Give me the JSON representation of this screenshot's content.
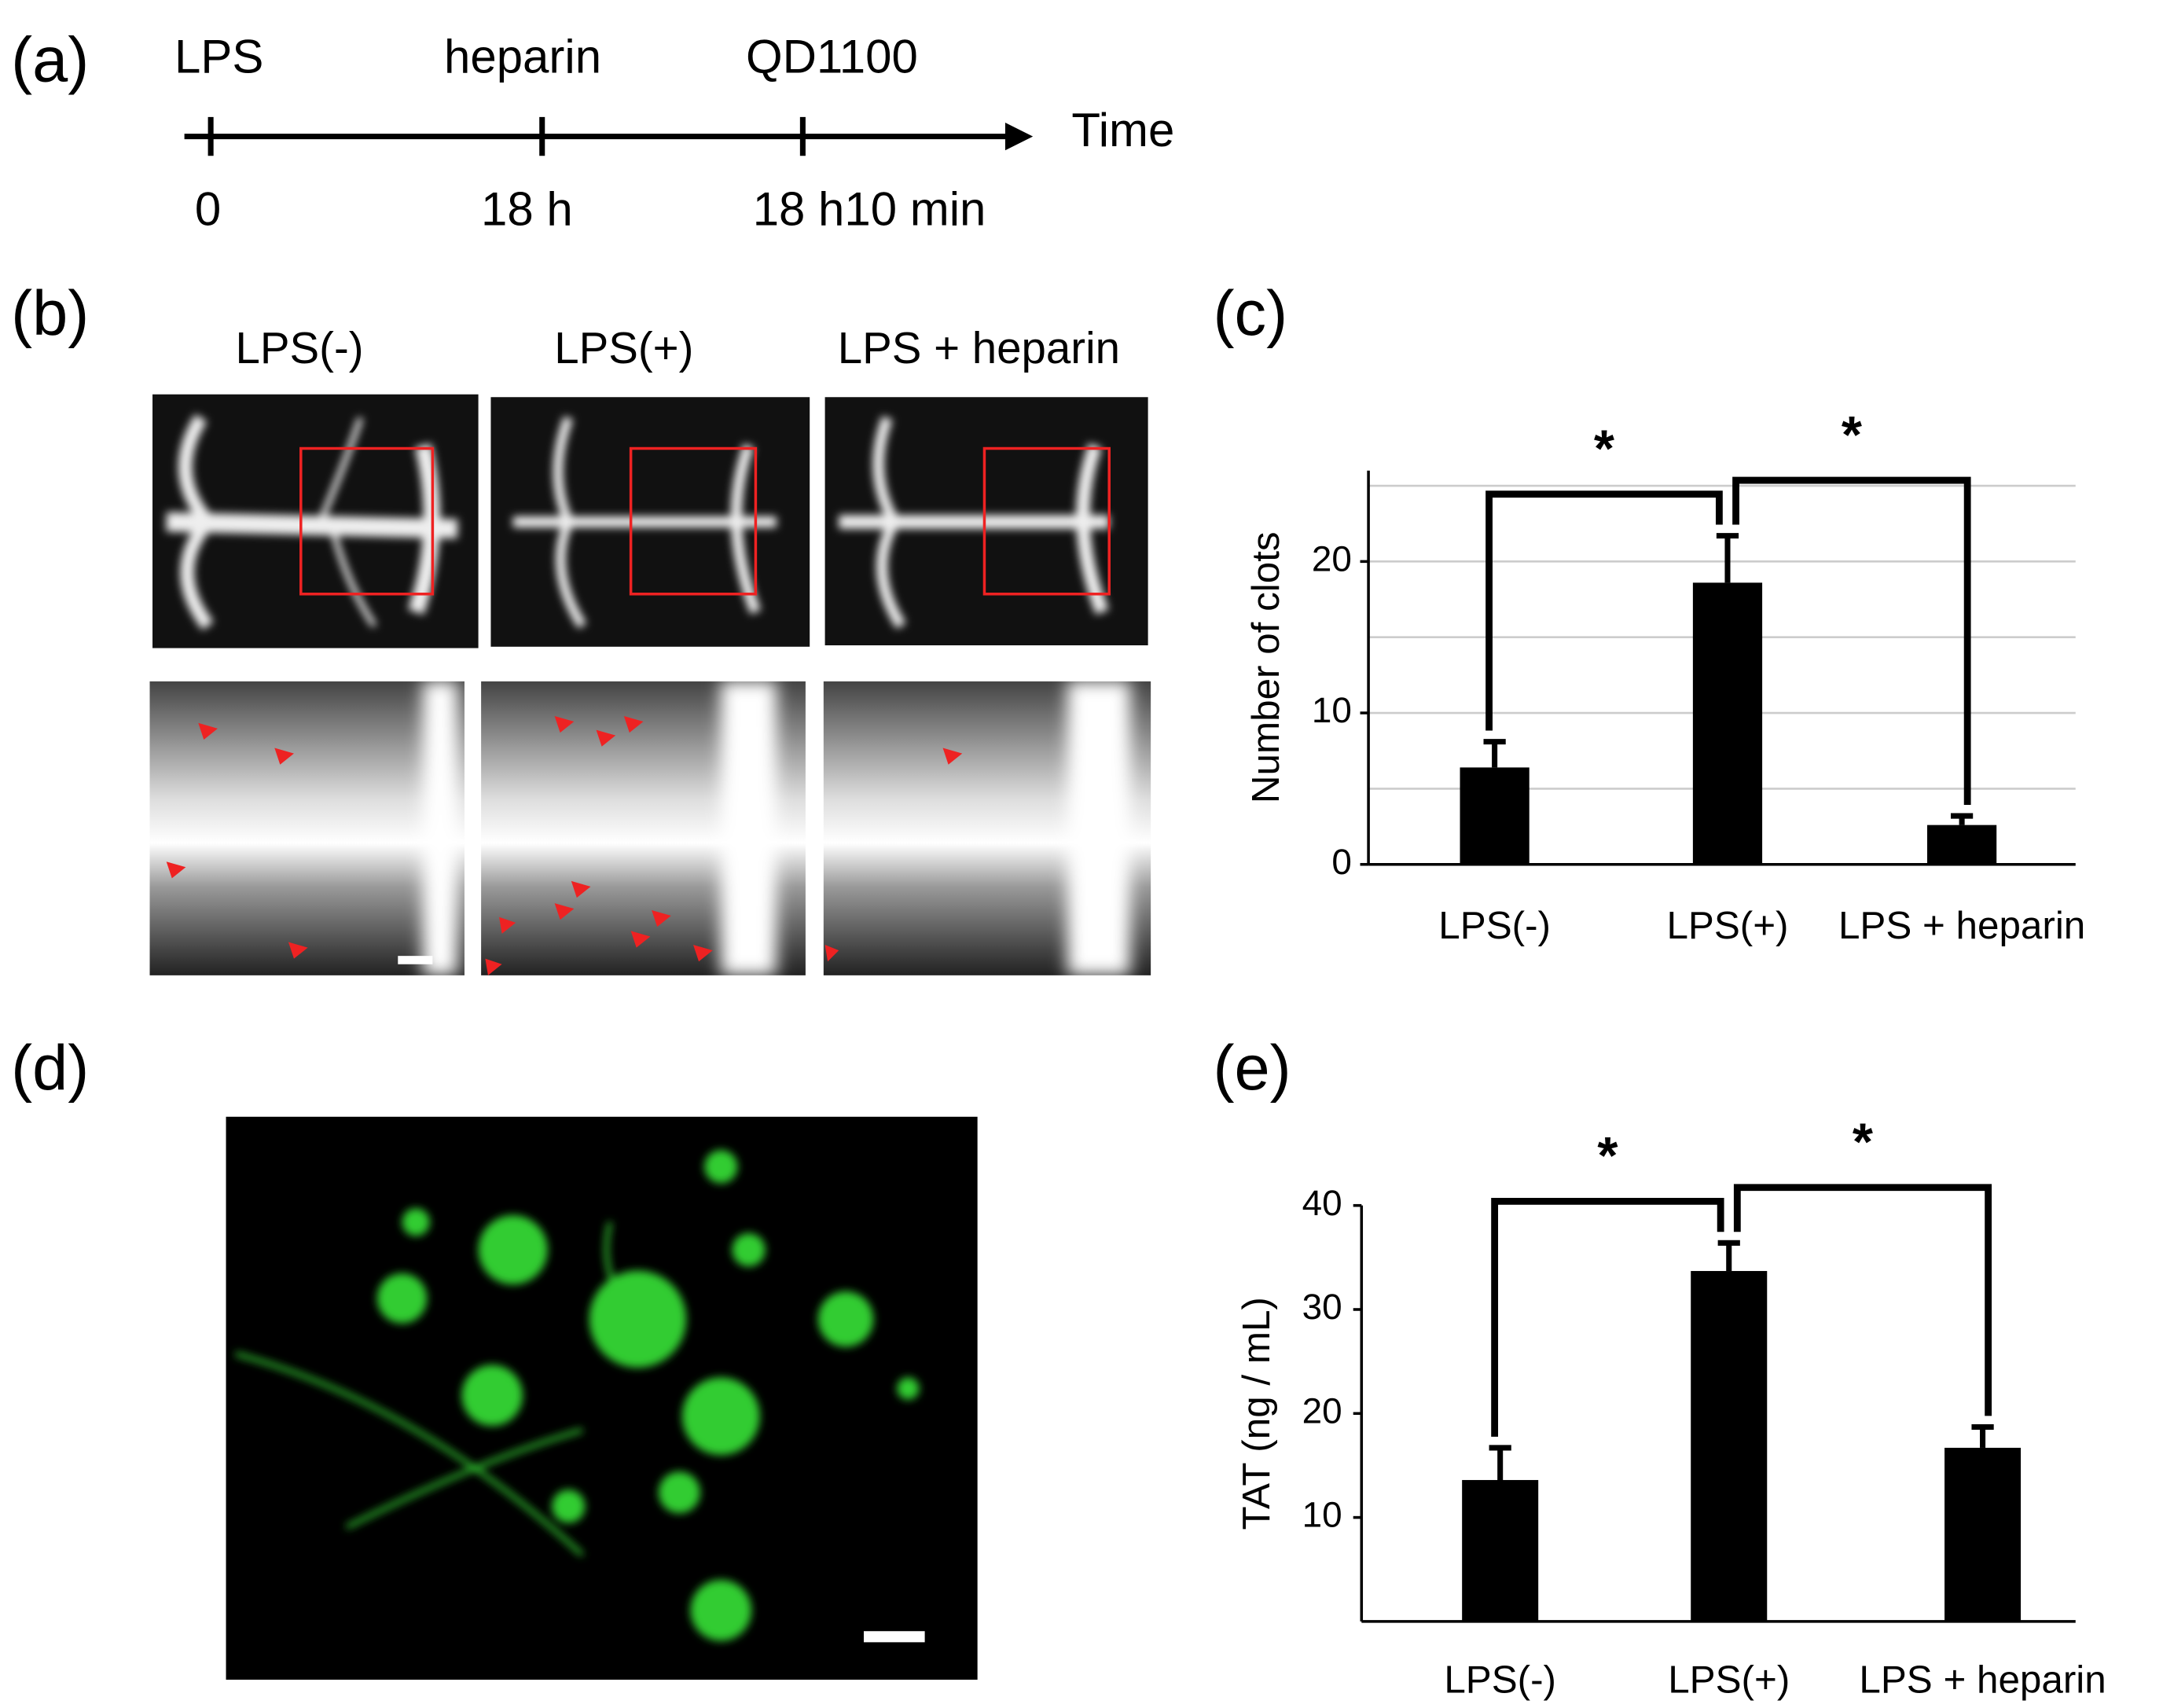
{
  "panel_labels": [
    "(a)",
    "(b)",
    "(c)",
    "(d)",
    "(e)"
  ],
  "timeline": {
    "axis_label": "Time",
    "events": [
      {
        "label": "LPS",
        "time": "0"
      },
      {
        "label": "heparin",
        "time": "18 h"
      },
      {
        "label": "QD1100",
        "time": "18 h10 min"
      }
    ]
  },
  "images": {
    "column_labels": [
      "LPS(-)",
      "LPS(+)",
      "LPS + heparin"
    ]
  },
  "chart_data": [
    {
      "type": "bar",
      "y_label": "Number of clots",
      "categories": [
        "LPS(-)",
        "LPS(+)",
        "LPS + heparin"
      ],
      "values": [
        6.4,
        18.6,
        2.6
      ],
      "errors": [
        1.7,
        3.1,
        0.6
      ],
      "color": "#000000",
      "ylim": [
        0,
        26
      ],
      "yticks": [
        0,
        10,
        20
      ],
      "ygrid": [
        0,
        5,
        10,
        15,
        20,
        25
      ],
      "grid": true,
      "significance": [
        {
          "pair": [
            0,
            1
          ],
          "label": "*"
        },
        {
          "pair": [
            1,
            2
          ],
          "label": "*"
        }
      ]
    },
    {
      "type": "bar",
      "y_label": "TAT (ng / mL)",
      "categories": [
        "LPS(-)",
        "LPS(+)",
        "LPS + heparin"
      ],
      "values": [
        13.6,
        33.7,
        16.7
      ],
      "errors": [
        3.1,
        2.7,
        2.0
      ],
      "color": "#000000",
      "ylim": [
        0,
        40
      ],
      "yticks": [
        10,
        20,
        30,
        40
      ],
      "grid": false,
      "significance": [
        {
          "pair": [
            0,
            1
          ],
          "label": "*"
        },
        {
          "pair": [
            1,
            2
          ],
          "label": "*"
        }
      ]
    }
  ]
}
